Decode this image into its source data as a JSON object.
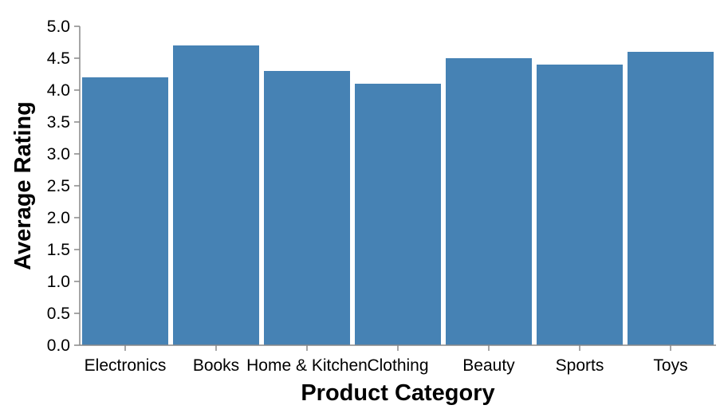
{
  "chart_data": {
    "type": "bar",
    "categories": [
      "Electronics",
      "Books",
      "Home & Kitchen",
      "Clothing",
      "Beauty",
      "Sports",
      "Toys"
    ],
    "values": [
      4.2,
      4.7,
      4.3,
      4.1,
      4.5,
      4.4,
      4.6
    ],
    "xlabel": "Product Category",
    "ylabel": "Average Rating",
    "ylim": [
      0,
      5.0
    ],
    "yticks": [
      "0.0",
      "0.5",
      "1.0",
      "1.5",
      "2.0",
      "2.5",
      "3.0",
      "3.5",
      "4.0",
      "4.5",
      "5.0"
    ],
    "bar_color": "#4682b4",
    "axis_color": "#888888",
    "grid": false,
    "legend": "none"
  }
}
